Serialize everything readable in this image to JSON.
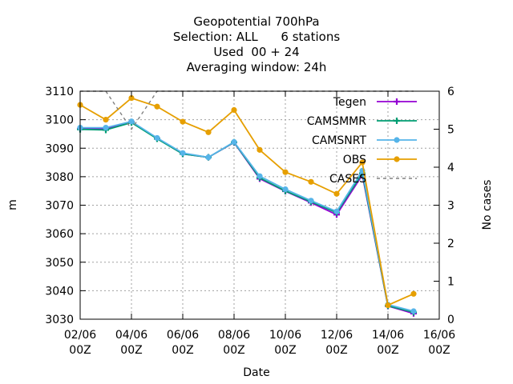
{
  "chart_data": {
    "type": "line",
    "title_lines": [
      "Geopotential 700hPa",
      "Selection: ALL      6 stations",
      "Used  00 + 24",
      "Averaging window: 24h"
    ],
    "xlabel": "Date",
    "ylabel": "m",
    "y2label": "No cases",
    "x_ticks": [
      {
        "top": "02/06",
        "bottom": "00Z"
      },
      {
        "top": "04/06",
        "bottom": "00Z"
      },
      {
        "top": "06/06",
        "bottom": "00Z"
      },
      {
        "top": "08/06",
        "bottom": "00Z"
      },
      {
        "top": "10/06",
        "bottom": "00Z"
      },
      {
        "top": "12/06",
        "bottom": "00Z"
      },
      {
        "top": "14/06",
        "bottom": "00Z"
      },
      {
        "top": "16/06",
        "bottom": "00Z"
      }
    ],
    "xlim": [
      "02/06 00Z",
      "16/06 00Z"
    ],
    "x": [
      "02/06 00Z",
      "03/06 00Z",
      "04/06 00Z",
      "05/06 00Z",
      "06/06 00Z",
      "07/06 00Z",
      "08/06 00Z",
      "09/06 00Z",
      "10/06 00Z",
      "11/06 00Z",
      "12/06 00Z",
      "13/06 00Z",
      "14/06 00Z",
      "15/06 00Z"
    ],
    "ylim": [
      3030,
      3110
    ],
    "y_ticks": [
      3030,
      3040,
      3050,
      3060,
      3070,
      3080,
      3090,
      3100,
      3110
    ],
    "y2lim": [
      0,
      6
    ],
    "y2_ticks": [
      0,
      1,
      2,
      3,
      4,
      5,
      6
    ],
    "grid": true,
    "legend_position": "top-right",
    "series": [
      {
        "name": "Tegen",
        "axis": "y",
        "color": "#9400d3",
        "marker": "plus",
        "dashed": false,
        "values": [
          3096.8,
          3096.9,
          3099.2,
          3093.4,
          3088.0,
          3086.8,
          3092.0,
          3079.3,
          3074.9,
          3070.9,
          3066.7,
          3080.6,
          3034.6,
          3032.0
        ]
      },
      {
        "name": "CAMSMMR",
        "axis": "y",
        "color": "#009e73",
        "marker": "plus",
        "dashed": false,
        "values": [
          3096.6,
          3096.4,
          3099.0,
          3093.3,
          3088.0,
          3086.8,
          3092.1,
          3079.6,
          3075.0,
          3071.2,
          3067.4,
          3081.2,
          3034.7,
          3032.4
        ]
      },
      {
        "name": "CAMSNRT",
        "axis": "y",
        "color": "#56b4e9",
        "marker": "dot",
        "dashed": false,
        "values": [
          3097.2,
          3097.2,
          3099.4,
          3093.6,
          3088.3,
          3086.8,
          3092.2,
          3080.2,
          3075.6,
          3071.6,
          3067.8,
          3082.1,
          3035.1,
          3032.8
        ]
      },
      {
        "name": "OBS",
        "axis": "y",
        "color": "#e69f00",
        "marker": "dot",
        "dashed": false,
        "values": [
          3105.2,
          3100.0,
          3107.6,
          3104.6,
          3099.3,
          3095.6,
          3103.4,
          3089.4,
          3081.6,
          3078.2,
          3074.0,
          3085.0,
          3034.9,
          3038.9
        ]
      },
      {
        "name": "CASES",
        "axis": "y2",
        "color": "#808080",
        "marker": "none",
        "dashed": true,
        "values": [
          6,
          6,
          5,
          6,
          6,
          6,
          6,
          6,
          6,
          6,
          6,
          6,
          6,
          6
        ]
      }
    ]
  }
}
